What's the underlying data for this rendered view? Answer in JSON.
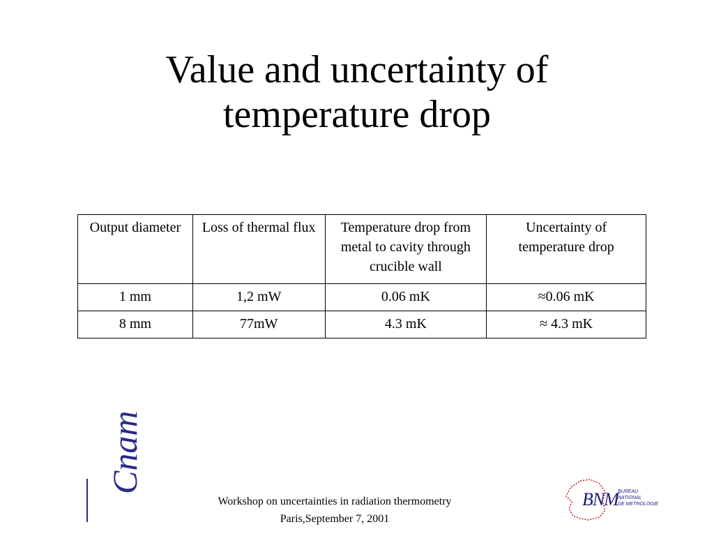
{
  "title": {
    "line1": "Value and uncertainty of",
    "line2": "temperature drop"
  },
  "table": {
    "headers": [
      "Output diameter",
      "Loss of thermal flux",
      "Temperature drop from metal to cavity through crucible wall",
      "Uncertainty of temperature drop"
    ],
    "rows": [
      [
        "1 mm",
        "1,2 mW",
        "0.06 mK",
        "≈0.06 mK"
      ],
      [
        "8 mm",
        "77mW",
        "4.3 mK",
        "≈ 4.3 mK"
      ]
    ]
  },
  "footer": {
    "line1": "Workshop on uncertainties in radiation thermometry",
    "line2": "Paris,September 7, 2001"
  },
  "logos": {
    "left": "Cnam",
    "right": {
      "abbr": "BNM",
      "line1": "BUREAU",
      "line2": "NATIONAL",
      "line3": "DE METROLOGIE"
    }
  }
}
